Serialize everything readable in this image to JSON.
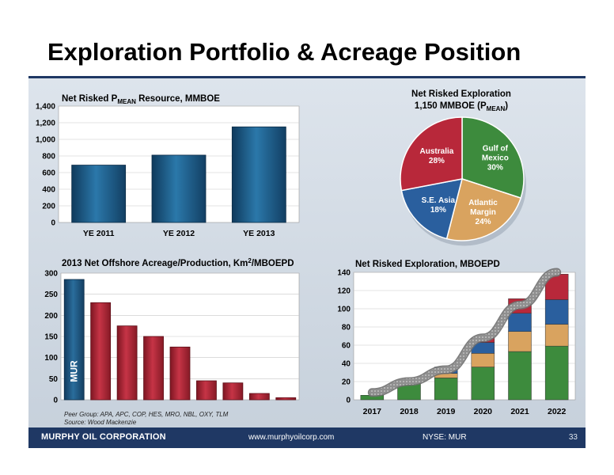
{
  "slide": {
    "title": "Exploration Portfolio & Acreage Position",
    "footer_company": "MURPHY OIL CORPORATION",
    "footer_url": "www.murphyoilcorp.com",
    "footer_ticker": "NYSE: MUR",
    "page_number": "33",
    "colors": {
      "navy": "#1f3864",
      "blue_bar": "#1f5f8b",
      "red_bar": "#b02a3a"
    }
  },
  "chart_data": [
    {
      "type": "bar",
      "title": "Net Risked P",
      "title_sub": "MEAN",
      "title_rest": " Resource, MMBOE",
      "categories": [
        "YE 2011",
        "YE 2012",
        "YE 2013"
      ],
      "values": [
        690,
        810,
        1150
      ],
      "ylim": [
        0,
        1400
      ],
      "yticks": [
        "0",
        "200",
        "400",
        "600",
        "800",
        "1,000",
        "1,200",
        "1,400"
      ],
      "grid": true
    },
    {
      "type": "pie",
      "title_line1": "Net Risked Exploration",
      "title_line2_pre": "1,150 MMBOE (P",
      "title_line2_sub": "MEAN",
      "title_line2_post": ")",
      "slices": [
        {
          "label_lines": [
            "Gulf of",
            "Mexico",
            "30%"
          ],
          "value": 30,
          "color": "#3d8b3d"
        },
        {
          "label_lines": [
            "Atlantic",
            "Margin",
            "24%"
          ],
          "value": 24,
          "color": "#d9a35f"
        },
        {
          "label_lines": [
            "S.E. Asia",
            "18%"
          ],
          "value": 18,
          "color": "#2a5f9e"
        },
        {
          "label_lines": [
            "Australia",
            "28%"
          ],
          "value": 28,
          "color": "#b8283a"
        }
      ]
    },
    {
      "type": "bar",
      "title_pre": "2013 Net Offshore Acreage/Production, Km",
      "title_sup": "2",
      "title_post": "/MBOEPD",
      "bar_label": "MUR",
      "values": [
        285,
        230,
        175,
        150,
        125,
        45,
        40,
        15,
        5
      ],
      "highlight_index": 0,
      "ylim": [
        0,
        300
      ],
      "yticks": [
        "0",
        "50",
        "100",
        "150",
        "200",
        "250",
        "300"
      ],
      "note_line1": "Peer Group:  APA, APC, COP, HES, MRO, NBL, OXY, TLM",
      "note_line2": "Source: Wood Mackenzie",
      "grid": true
    },
    {
      "type": "stacked_bar",
      "title": "Net Risked Exploration, MBOEPD",
      "categories": [
        "2017",
        "2018",
        "2019",
        "2020",
        "2021",
        "2022"
      ],
      "series": [
        {
          "values": [
            5,
            18,
            24,
            36,
            53,
            59
          ],
          "color": "#3d8b3d"
        },
        {
          "values": [
            0,
            0,
            5,
            15,
            22,
            24
          ],
          "color": "#d9a35f"
        },
        {
          "values": [
            0,
            0,
            7,
            12,
            20,
            27
          ],
          "color": "#2a5f9e"
        },
        {
          "values": [
            0,
            0,
            0,
            5,
            16,
            28
          ],
          "color": "#b8283a"
        }
      ],
      "trend_values": [
        8,
        20,
        33,
        68,
        104,
        140
      ],
      "ylim": [
        0,
        140
      ],
      "yticks": [
        "0",
        "20",
        "40",
        "60",
        "80",
        "100",
        "120",
        "140"
      ],
      "grid": true
    }
  ]
}
